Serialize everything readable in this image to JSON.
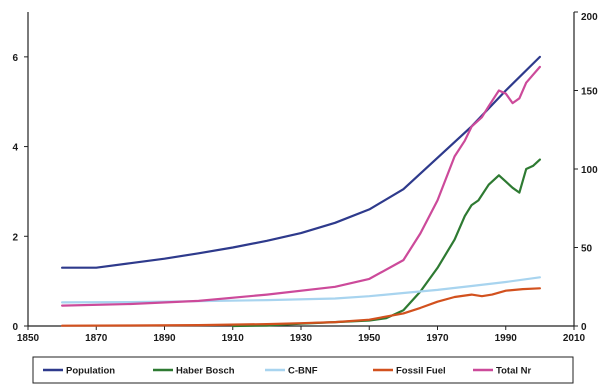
{
  "chart_data": {
    "type": "line",
    "title": "",
    "xlabel": "",
    "ylabel": "",
    "y2label": "",
    "xlim": [
      1850,
      2010
    ],
    "ylim": [
      0,
      7
    ],
    "y2lim": [
      0,
      200
    ],
    "x_ticks": [
      1850,
      1870,
      1890,
      1910,
      1930,
      1950,
      1970,
      1990,
      2010
    ],
    "x_tick_labels": [
      "1850",
      "1870",
      "1890",
      "1910",
      "1930",
      "1950",
      "1970",
      "1990",
      "2010"
    ],
    "y_ticks": [
      0,
      2,
      4,
      6
    ],
    "y_tick_labels": [
      "0",
      "2",
      "4",
      "6"
    ],
    "y2_ticks": [
      0,
      50,
      100,
      150,
      200
    ],
    "y2_tick_labels": [
      "0",
      "50",
      "100",
      "150",
      "200"
    ],
    "grid": false,
    "legend_position": "bottom",
    "series": [
      {
        "name": "Population",
        "color": "#2e3a8c",
        "axis": "left",
        "x": [
          1860,
          1870,
          1880,
          1890,
          1900,
          1910,
          1920,
          1930,
          1940,
          1950,
          1960,
          1970,
          1980,
          1990,
          2000
        ],
        "y": [
          1.3,
          1.3,
          1.4,
          1.5,
          1.62,
          1.75,
          1.9,
          2.07,
          2.3,
          2.6,
          3.05,
          3.75,
          4.45,
          5.25,
          6.0
        ]
      },
      {
        "name": "Haber Bosch",
        "color": "#2e7a32",
        "axis": "right",
        "x": [
          1910,
          1920,
          1930,
          1940,
          1950,
          1955,
          1960,
          1965,
          1970,
          1975,
          1978,
          1980,
          1982,
          1985,
          1988,
          1990,
          1992,
          1994,
          1996,
          1998,
          2000
        ],
        "y": [
          0,
          0.3,
          1.5,
          2.5,
          3.5,
          5,
          10,
          22,
          37,
          55,
          70,
          77,
          80,
          90,
          96,
          92,
          88,
          85,
          100,
          102,
          106
        ]
      },
      {
        "name": "C-BNF",
        "color": "#a8d4ef",
        "axis": "right",
        "x": [
          1860,
          1880,
          1900,
          1920,
          1940,
          1950,
          1960,
          1970,
          1980,
          1990,
          2000
        ],
        "y": [
          15,
          15.2,
          15.8,
          16.5,
          17.5,
          19,
          21,
          23,
          25.5,
          28,
          31
        ]
      },
      {
        "name": "Fossil Fuel",
        "color": "#d2511e",
        "axis": "right",
        "x": [
          1860,
          1880,
          1900,
          1920,
          1930,
          1940,
          1950,
          1960,
          1965,
          1970,
          1975,
          1980,
          1983,
          1986,
          1990,
          1995,
          2000
        ],
        "y": [
          0.2,
          0.3,
          0.6,
          1.2,
          1.8,
          2.5,
          4,
          8,
          11.5,
          15.5,
          18.5,
          20,
          19,
          20,
          22.5,
          23.5,
          24
        ]
      },
      {
        "name": "Total Nr",
        "color": "#cc4a9a",
        "axis": "right",
        "x": [
          1860,
          1880,
          1900,
          1920,
          1940,
          1950,
          1960,
          1965,
          1970,
          1975,
          1978,
          1980,
          1983,
          1985,
          1988,
          1990,
          1992,
          1994,
          1996,
          1998,
          2000
        ],
        "y": [
          13,
          14,
          16,
          20,
          25,
          30,
          42,
          59,
          80,
          108,
          118,
          127,
          133,
          140,
          150,
          148,
          142,
          145,
          155,
          160,
          165
        ]
      }
    ]
  }
}
